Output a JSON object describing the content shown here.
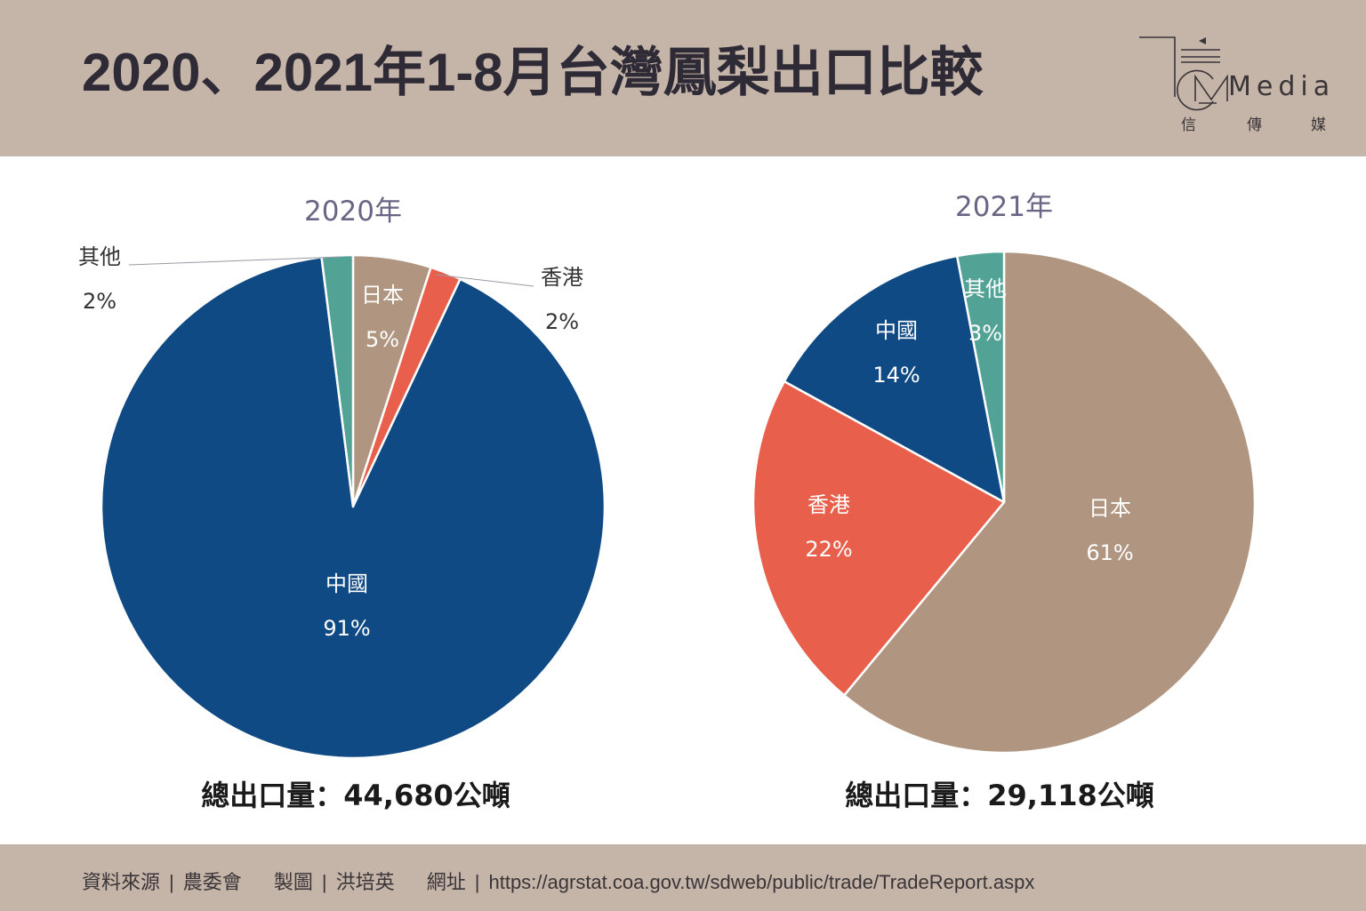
{
  "header": {
    "title": "2020、2021年1-8月台灣鳳梨出口比較",
    "logo": {
      "wordmark": "Media",
      "subtitle": [
        "信",
        "傳",
        "媒"
      ]
    }
  },
  "colors": {
    "header_bg": "#c5b4a8",
    "japan": "#b09680",
    "hongkong": "#e85f4c",
    "china": "#104a85",
    "other": "#52a396"
  },
  "chart_data": [
    {
      "type": "pie",
      "title": "2020年",
      "start": "top",
      "direction": "clockwise",
      "slices": [
        {
          "label": "日本",
          "value": 5,
          "pct_label": "5%",
          "color_key": "japan",
          "label_pos": "inside"
        },
        {
          "label": "香港",
          "value": 2,
          "pct_label": "2%",
          "color_key": "hongkong",
          "label_pos": "outside-right"
        },
        {
          "label": "中國",
          "value": 91,
          "pct_label": "91%",
          "color_key": "china",
          "label_pos": "inside"
        },
        {
          "label": "其他",
          "value": 2,
          "pct_label": "2%",
          "color_key": "other",
          "label_pos": "outside-left"
        }
      ],
      "total_label": "總出口量：44,680公噸"
    },
    {
      "type": "pie",
      "title": "2021年",
      "start": "top",
      "direction": "clockwise",
      "slices": [
        {
          "label": "日本",
          "value": 61,
          "pct_label": "61%",
          "color_key": "japan",
          "label_pos": "inside"
        },
        {
          "label": "香港",
          "value": 22,
          "pct_label": "22%",
          "color_key": "hongkong",
          "label_pos": "inside"
        },
        {
          "label": "中國",
          "value": 14,
          "pct_label": "14%",
          "color_key": "china",
          "label_pos": "inside"
        },
        {
          "label": "其他",
          "value": 3,
          "pct_label": "3%",
          "color_key": "other",
          "label_pos": "inside"
        }
      ],
      "total_label": "總出口量：29,118公噸"
    }
  ],
  "footer": {
    "source_label": "資料來源",
    "source_value": "農委會",
    "chart_by_label": "製圖",
    "chart_by_value": "洪培英",
    "url_label": "網址",
    "url_value": "https://agrstat.coa.gov.tw/sdweb/public/trade/TradeReport.aspx"
  }
}
